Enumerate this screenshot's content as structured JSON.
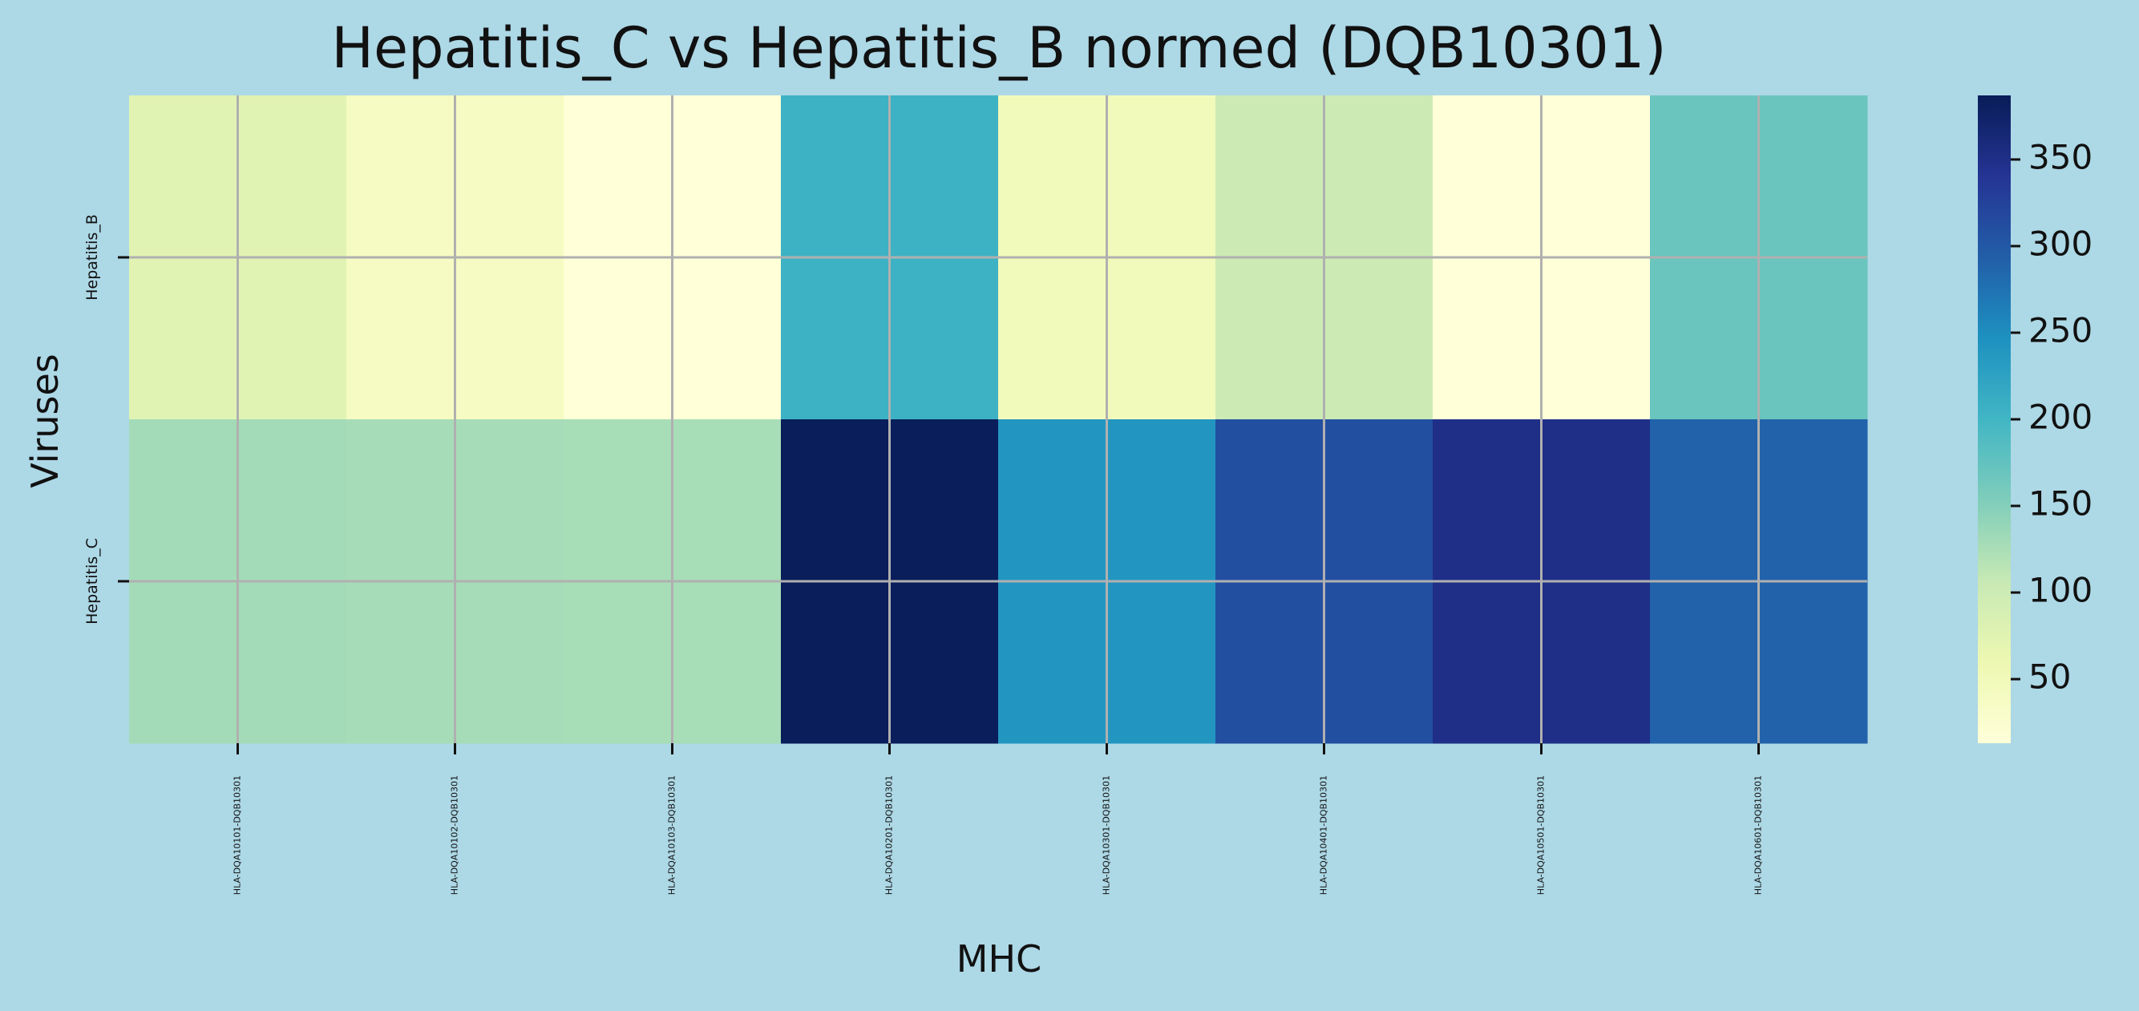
{
  "chart_data": {
    "type": "heatmap",
    "title": "Hepatitis_C vs Hepatitis_B normed (DQB10301)",
    "xlabel": "MHC",
    "ylabel": "Viruses",
    "x_categories": [
      "HLA-DQA10101-DQB10301",
      "HLA-DQA10102-DQB10301",
      "HLA-DQA10103-DQB10301",
      "HLA-DQA10201-DQB10301",
      "HLA-DQA10301-DQB10301",
      "HLA-DQA10401-DQB10301",
      "HLA-DQA10501-DQB10301",
      "HLA-DQA10601-DQB10301"
    ],
    "y_categories": [
      "Hepatitis_B",
      "Hepatitis_C"
    ],
    "values": [
      [
        75,
        40,
        14,
        205,
        48,
        100,
        14,
        170
      ],
      [
        130,
        128,
        127,
        385,
        240,
        310,
        350,
        290
      ]
    ],
    "colorbar": {
      "min": 13,
      "max": 387,
      "ticks": [
        50,
        100,
        150,
        200,
        250,
        300,
        350
      ],
      "colormap": "YlGnBu"
    },
    "grid": true,
    "colors": {
      "background": "#add8e6",
      "grid": "#b0b0b0",
      "colormap_stops": [
        "#ffffd9",
        "#edf8b1",
        "#c7e9b4",
        "#7fcdbb",
        "#41b6c4",
        "#1d91c0",
        "#225ea8",
        "#253494",
        "#081d58"
      ]
    }
  }
}
